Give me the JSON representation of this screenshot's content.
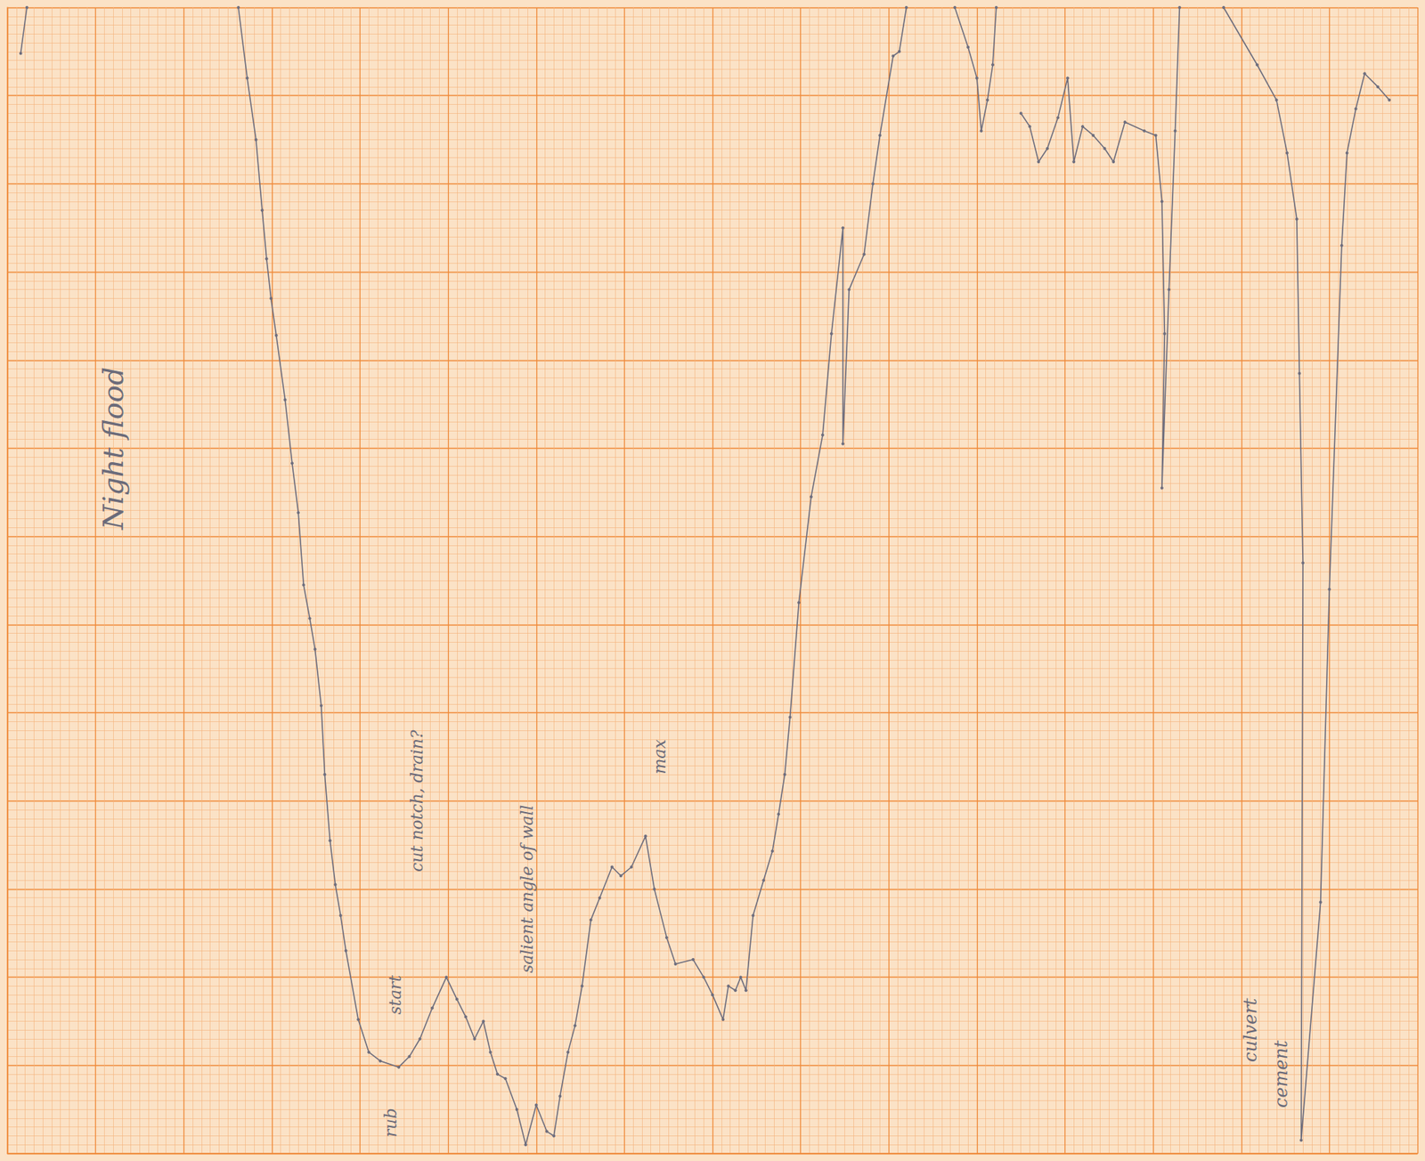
{
  "chart_data": {
    "type": "line",
    "color": "#6e6e7e",
    "marker": "circle",
    "grid": true,
    "tick_labels": false,
    "xlim": [
      0,
      160
    ],
    "ylim": [
      0,
      130
    ],
    "xticks": [
      0,
      10,
      20,
      30,
      40,
      50,
      60,
      70,
      80,
      90,
      100,
      110,
      120,
      130,
      140,
      150,
      160
    ],
    "yticks": [
      0,
      10,
      20,
      30,
      40,
      50,
      60,
      70,
      80,
      90,
      100,
      110,
      120,
      130
    ],
    "annotations": [
      "Night flood",
      "rub",
      "start",
      "cut notch, drain?",
      "salient angle of wall",
      "max",
      "culvert",
      "cement"
    ],
    "x": [
      1.5,
      2.2,
      null,
      26.2,
      27.2,
      28.2,
      28.9,
      29.4,
      29.9,
      30.5,
      31.5,
      32.3,
      33,
      33.6,
      34.3,
      34.9,
      35.6,
      36,
      36.6,
      37.2,
      37.8,
      38.4,
      39.8,
      41,
      42.3,
      44.4,
      45.6,
      46.8,
      48.2,
      49.8,
      51,
      52,
      53,
      54,
      54.8,
      55.6,
      56.5,
      57.8,
      58.8,
      60,
      61.2,
      62,
      62.7,
      63.6,
      64.4,
      65.2,
      66.2,
      67.2,
      68.6,
      69.6,
      70.8,
      72.4,
      73.4,
      74.8,
      75.8,
      77.8,
      79,
      80,
      81.2,
      81.8,
      82.6,
      83.2,
      83.8,
      84.6,
      85.8,
      86.8,
      87.5,
      88.2,
      88.8,
      89.8,
      91.2,
      92.5,
      93.5,
      94.8,
      94.8,
      95.5,
      97.2,
      98.2,
      99,
      100.5,
      101.2,
      102,
      null,
      107.5,
      109,
      110,
      110.5,
      111.2,
      111.8,
      112.2,
      null,
      115,
      116,
      117,
      118,
      119.2,
      120.3,
      121,
      122,
      123.2,
      124.5,
      125.5,
      126.8,
      129,
      130.3,
      131,
      131.3,
      131,
      131.8,
      132.5,
      133,
      null,
      138,
      141.8,
      144,
      145.2,
      146.3,
      146.6,
      147,
      146.8,
      149,
      150,
      151.4,
      152,
      153,
      154,
      155.5,
      156.8
    ],
    "values": [
      124.8,
      130,
      null,
      130,
      122,
      115,
      107,
      101.5,
      97,
      92.8,
      85.5,
      78.3,
      72.7,
      64.5,
      60.7,
      57.2,
      50.8,
      43,
      35.5,
      30.5,
      27,
      23,
      15.2,
      11.5,
      10.5,
      9.8,
      11,
      13,
      16.5,
      20,
      17.5,
      15.5,
      13,
      15,
      11.5,
      9,
      8.5,
      5,
      1,
      5.5,
      2.5,
      2,
      6.5,
      11.5,
      14.5,
      19,
      26.5,
      29,
      32.5,
      31.5,
      32.5,
      36,
      30,
      24.5,
      21.5,
      22,
      20,
      18,
      15.2,
      19,
      18.5,
      20,
      18.5,
      27,
      31,
      34.3,
      38.5,
      43,
      49.5,
      62.5,
      74.5,
      81.5,
      93,
      105,
      80.5,
      98,
      102,
      110,
      115.5,
      124.5,
      125,
      130,
      null,
      130,
      125.5,
      122,
      116,
      119.5,
      123.5,
      130,
      null,
      118,
      116.5,
      112.5,
      114,
      117.5,
      122,
      112.5,
      116.5,
      115.5,
      114,
      112.5,
      117,
      116,
      115.5,
      108,
      93,
      75.5,
      98,
      116,
      130,
      null,
      130,
      123.5,
      119.5,
      113.5,
      106,
      88.5,
      67,
      1.5,
      28.5,
      64,
      103,
      113.5,
      118.5,
      122.5,
      121,
      119.5
    ]
  }
}
